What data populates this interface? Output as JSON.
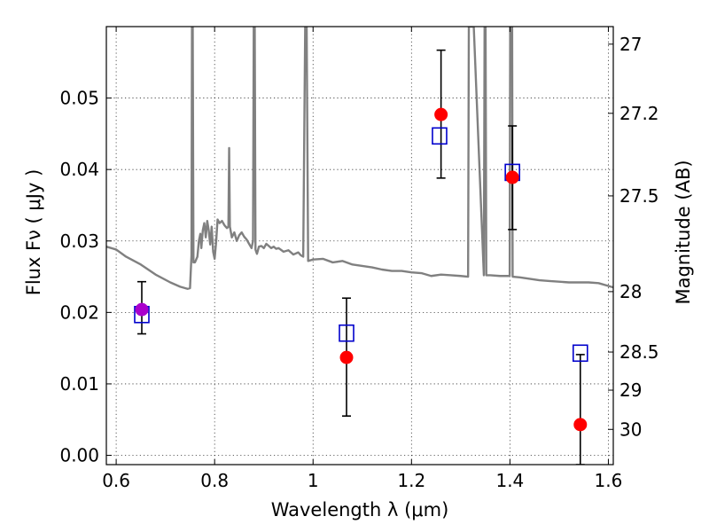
{
  "chart_data": {
    "type": "scatter",
    "title": "",
    "xlabel": "Wavelength  λ (μm)",
    "ylabel": "Flux  Fν  ( μJy )",
    "ylabel_right": "Magnitude (AB)",
    "xlim": [
      0.58,
      1.61
    ],
    "ylim": [
      -0.0013,
      0.06
    ],
    "x_ticks": [
      0.6,
      0.8,
      1.0,
      1.2,
      1.4,
      1.6
    ],
    "x_tick_labels": [
      "0.6",
      "0.8",
      "1",
      "1.2",
      "1.4",
      "1.6"
    ],
    "y_ticks": [
      0.0,
      0.01,
      0.02,
      0.03,
      0.04,
      0.05
    ],
    "y_tick_labels": [
      "0.00",
      "0.01",
      "0.02",
      "0.03",
      "0.04",
      "0.05"
    ],
    "right_ticks": [
      {
        "mag": 27,
        "label": "27"
      },
      {
        "mag": 27.2,
        "label": "27.2"
      },
      {
        "mag": 27.5,
        "label": "27.5"
      },
      {
        "mag": 28,
        "label": "28"
      },
      {
        "mag": 28.5,
        "label": "28.5"
      },
      {
        "mag": 29,
        "label": "29"
      },
      {
        "mag": 30,
        "label": "30"
      }
    ],
    "grid": true,
    "colors": {
      "model": "#808080",
      "observed": "#ff0000",
      "observed_first": "#aa00cc",
      "model_band": "#0000cc",
      "errorbar": "#000000"
    },
    "model_spectrum": [
      [
        0.58,
        0.0292
      ],
      [
        0.6,
        0.0288
      ],
      [
        0.62,
        0.0278
      ],
      [
        0.65,
        0.0267
      ],
      [
        0.68,
        0.0253
      ],
      [
        0.71,
        0.0242
      ],
      [
        0.73,
        0.0236
      ],
      [
        0.745,
        0.0233
      ],
      [
        0.75,
        0.0234
      ],
      [
        0.753,
        0.028
      ],
      [
        0.754,
        0.06
      ],
      [
        0.7555,
        0.06
      ],
      [
        0.757,
        0.027
      ],
      [
        0.76,
        0.027
      ],
      [
        0.765,
        0.0278
      ],
      [
        0.768,
        0.03
      ],
      [
        0.771,
        0.031
      ],
      [
        0.773,
        0.029
      ],
      [
        0.776,
        0.0315
      ],
      [
        0.779,
        0.0325
      ],
      [
        0.782,
        0.0305
      ],
      [
        0.785,
        0.0328
      ],
      [
        0.788,
        0.0315
      ],
      [
        0.791,
        0.0295
      ],
      [
        0.794,
        0.032
      ],
      [
        0.797,
        0.0285
      ],
      [
        0.8,
        0.0275
      ],
      [
        0.803,
        0.0298
      ],
      [
        0.806,
        0.033
      ],
      [
        0.81,
        0.0325
      ],
      [
        0.815,
        0.0328
      ],
      [
        0.82,
        0.0322
      ],
      [
        0.825,
        0.0318
      ],
      [
        0.828,
        0.032
      ],
      [
        0.8295,
        0.043
      ],
      [
        0.831,
        0.032
      ],
      [
        0.835,
        0.0305
      ],
      [
        0.84,
        0.0312
      ],
      [
        0.845,
        0.03
      ],
      [
        0.85,
        0.0308
      ],
      [
        0.855,
        0.0312
      ],
      [
        0.86,
        0.0306
      ],
      [
        0.865,
        0.0302
      ],
      [
        0.87,
        0.0296
      ],
      [
        0.875,
        0.029
      ],
      [
        0.878,
        0.03
      ],
      [
        0.8795,
        0.06
      ],
      [
        0.8815,
        0.06
      ],
      [
        0.883,
        0.0288
      ],
      [
        0.886,
        0.0282
      ],
      [
        0.89,
        0.0292
      ],
      [
        0.895,
        0.0293
      ],
      [
        0.9,
        0.029
      ],
      [
        0.905,
        0.0296
      ],
      [
        0.91,
        0.0293
      ],
      [
        0.915,
        0.029
      ],
      [
        0.92,
        0.0292
      ],
      [
        0.925,
        0.0289
      ],
      [
        0.93,
        0.029
      ],
      [
        0.94,
        0.0285
      ],
      [
        0.95,
        0.0287
      ],
      [
        0.96,
        0.0281
      ],
      [
        0.97,
        0.0284
      ],
      [
        0.975,
        0.028
      ],
      [
        0.98,
        0.0278
      ],
      [
        0.984,
        0.06
      ],
      [
        0.987,
        0.06
      ],
      [
        0.99,
        0.0272
      ],
      [
        1.0,
        0.0274
      ],
      [
        1.02,
        0.0275
      ],
      [
        1.04,
        0.027
      ],
      [
        1.06,
        0.0272
      ],
      [
        1.08,
        0.0267
      ],
      [
        1.1,
        0.0265
      ],
      [
        1.12,
        0.0263
      ],
      [
        1.14,
        0.026
      ],
      [
        1.16,
        0.0258
      ],
      [
        1.18,
        0.0258
      ],
      [
        1.2,
        0.0256
      ],
      [
        1.22,
        0.0255
      ],
      [
        1.24,
        0.0251
      ],
      [
        1.26,
        0.0253
      ],
      [
        1.28,
        0.0252
      ],
      [
        1.3,
        0.0251
      ],
      [
        1.315,
        0.025
      ],
      [
        1.3165,
        0.06
      ],
      [
        1.325,
        0.06
      ],
      [
        1.3265,
        0.06
      ],
      [
        1.347,
        0.0252
      ],
      [
        1.3485,
        0.06
      ],
      [
        1.3505,
        0.06
      ],
      [
        1.352,
        0.0252
      ],
      [
        1.36,
        0.0252
      ],
      [
        1.38,
        0.0251
      ],
      [
        1.3995,
        0.0251
      ],
      [
        1.4005,
        0.06
      ],
      [
        1.4045,
        0.06
      ],
      [
        1.4055,
        0.025
      ],
      [
        1.42,
        0.0249
      ],
      [
        1.44,
        0.0247
      ],
      [
        1.46,
        0.0245
      ],
      [
        1.48,
        0.0244
      ],
      [
        1.5,
        0.0243
      ],
      [
        1.52,
        0.0242
      ],
      [
        1.54,
        0.0242
      ],
      [
        1.56,
        0.0242
      ],
      [
        1.58,
        0.0241
      ],
      [
        1.6,
        0.0237
      ],
      [
        1.61,
        0.0235
      ]
    ],
    "observed": [
      {
        "x": 0.652,
        "y": 0.0204,
        "yerr_low": 0.0034,
        "yerr_high": 0.0039
      },
      {
        "x": 1.068,
        "y": 0.0137,
        "yerr_low": 0.0082,
        "yerr_high": 0.0083
      },
      {
        "x": 1.26,
        "y": 0.0477,
        "yerr_low": 0.0089,
        "yerr_high": 0.009
      },
      {
        "x": 1.405,
        "y": 0.0389,
        "yerr_low": 0.0073,
        "yerr_high": 0.0072
      },
      {
        "x": 1.543,
        "y": 0.0043,
        "yerr_low": 0.0056,
        "yerr_high": 0.0098
      }
    ],
    "model_bands": [
      {
        "x": 0.652,
        "y": 0.0197
      },
      {
        "x": 1.068,
        "y": 0.0171
      },
      {
        "x": 1.257,
        "y": 0.0447
      },
      {
        "x": 1.405,
        "y": 0.0396
      },
      {
        "x": 1.543,
        "y": 0.0143
      }
    ]
  }
}
